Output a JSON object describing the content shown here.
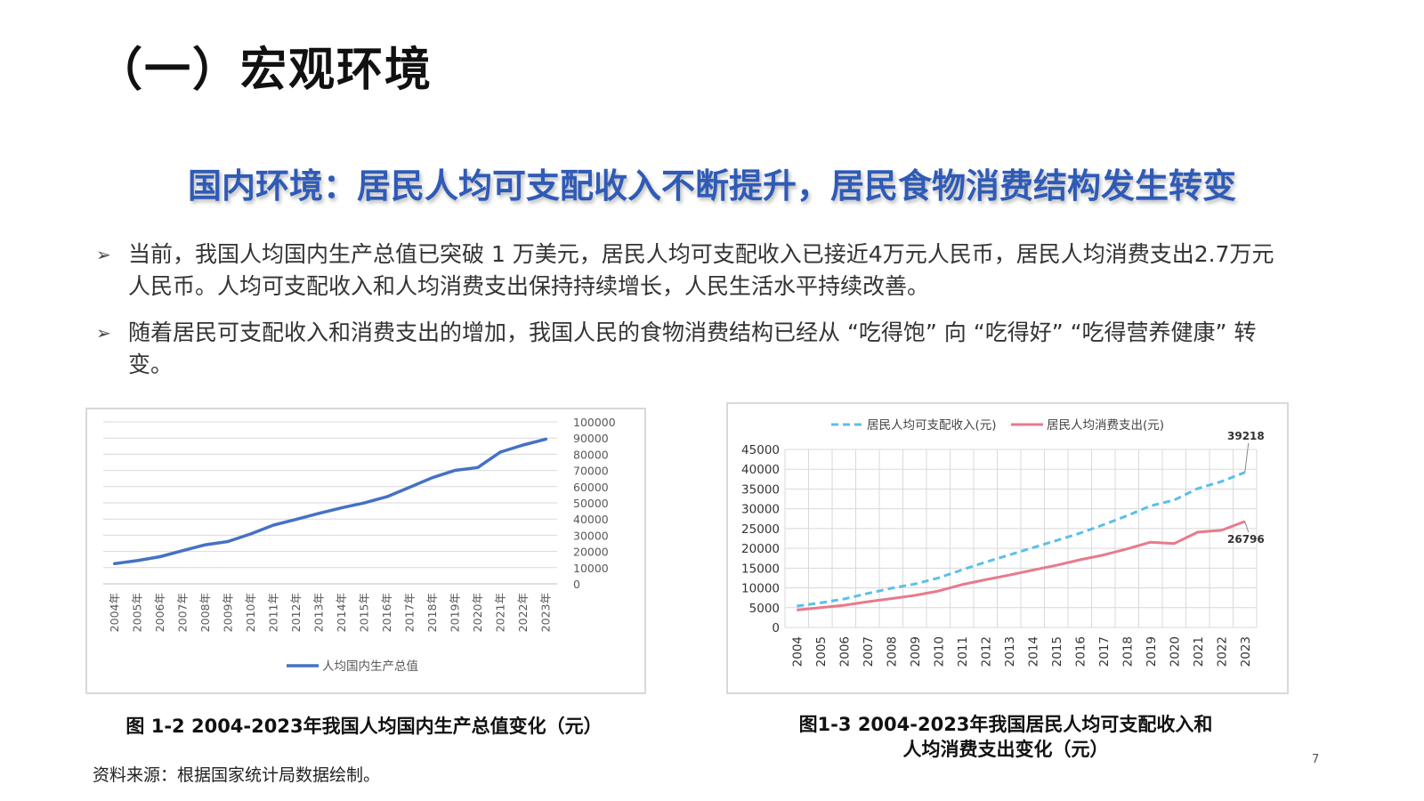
{
  "page": {
    "title": "（一）宏观环境",
    "subtitle": "国内环境：居民人均可支配收入不断提升，居民食物消费结构发生转变",
    "bullets": [
      "当前，我国人均国内生产总值已突破 1 万美元，居民人均可支配收入已接近4万元人民币，居民人均消费支出2.7万元人民币。人均可支配收入和人均消费支出保持持续增长，人民生活水平持续改善。",
      "随着居民可支配收入和消费支出的增加，我国人民的食物消费结构已经从 “吃得饱” 向 “吃得好” “吃得营养健康” 转变。"
    ],
    "captions": {
      "chart1": "图 1-2   2004-2023年我国人均国内生产总值变化（元）",
      "chart2_line1": "图1-3   2004-2023年我国居民人均可支配收入和",
      "chart2_line2": "人均消费支出变化（元）"
    },
    "source": "资料来源：根据国家统计局数据绘制。",
    "page_number": "7",
    "icons": {
      "bullet": "arrowhead-icon"
    }
  },
  "chart_data": [
    {
      "type": "line",
      "categories": [
        "2004年",
        "2005年",
        "2006年",
        "2007年",
        "2008年",
        "2009年",
        "2010年",
        "2011年",
        "2012年",
        "2013年",
        "2014年",
        "2015年",
        "2016年",
        "2017年",
        "2018年",
        "2019年",
        "2020年",
        "2021年",
        "2022年",
        "2023年"
      ],
      "series": [
        {
          "name": "人均国内生产总值",
          "color": "#4472c4",
          "values": [
            12487,
            14368,
            16738,
            20494,
            24100,
            26180,
            30808,
            36277,
            39771,
            43497,
            46912,
            49922,
            53783,
            59592,
            65534,
            70078,
            71828,
            81370,
            85698,
            89358
          ]
        }
      ],
      "ylim": [
        0,
        100000
      ],
      "yticks": [
        0,
        10000,
        20000,
        30000,
        40000,
        50000,
        60000,
        70000,
        80000,
        90000,
        100000
      ],
      "y_axis_side": "right",
      "grid": true,
      "legend": "bottom"
    },
    {
      "type": "line",
      "categories": [
        "2004",
        "2005",
        "2006",
        "2007",
        "2008",
        "2009",
        "2010",
        "2011",
        "2012",
        "2013",
        "2014",
        "2015",
        "2016",
        "2017",
        "2018",
        "2019",
        "2020",
        "2021",
        "2022",
        "2023"
      ],
      "series": [
        {
          "name": "居民人均可支配收入(元)",
          "color": "#5ac0e8",
          "dashed": true,
          "values": [
            5400,
            6200,
            7200,
            8600,
            9900,
            10977,
            12520,
            14551,
            16510,
            18311,
            20167,
            21966,
            23821,
            25974,
            28228,
            30733,
            32189,
            35128,
            36883,
            39218
          ]
        },
        {
          "name": "居民人均消费支出(元)",
          "color": "#e87a8c",
          "dashed": false,
          "values": [
            4400,
            5000,
            5600,
            6500,
            7300,
            8100,
            9200,
            10820,
            12054,
            13220,
            14491,
            15712,
            17111,
            18322,
            19853,
            21559,
            21210,
            24100,
            24538,
            26796
          ]
        }
      ],
      "annotations": [
        "39218",
        "26796"
      ],
      "ylim": [
        0,
        45000
      ],
      "yticks": [
        0,
        5000,
        10000,
        15000,
        20000,
        25000,
        30000,
        35000,
        40000,
        45000
      ],
      "grid": true,
      "legend": "top"
    }
  ]
}
